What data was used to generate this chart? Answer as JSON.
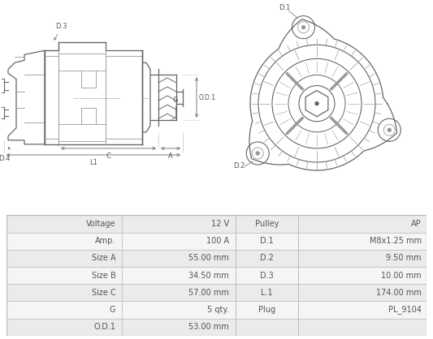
{
  "table_rows": [
    [
      "Voltage",
      "12 V",
      "Pulley",
      "AP"
    ],
    [
      "Amp.",
      "100 A",
      "D.1",
      "M8x1.25 mm"
    ],
    [
      "Size A",
      "55.00 mm",
      "D.2",
      "9.50 mm"
    ],
    [
      "Size B",
      "34.50 mm",
      "D.3",
      "10.00 mm"
    ],
    [
      "Size C",
      "57.00 mm",
      "L.1",
      "174.00 mm"
    ],
    [
      "G",
      "5 qty.",
      "Plug",
      "PL_9104"
    ],
    [
      "O.D.1",
      "53.00 mm",
      "",
      ""
    ]
  ],
  "table_bg_row0": "#ebebeb",
  "table_bg_row1": "#f5f5f5",
  "table_border": "#bbbbbb",
  "text_color": "#555555",
  "bg_color": "#ffffff",
  "lc": "#999999",
  "dc": "#666666",
  "tc": "#555555"
}
